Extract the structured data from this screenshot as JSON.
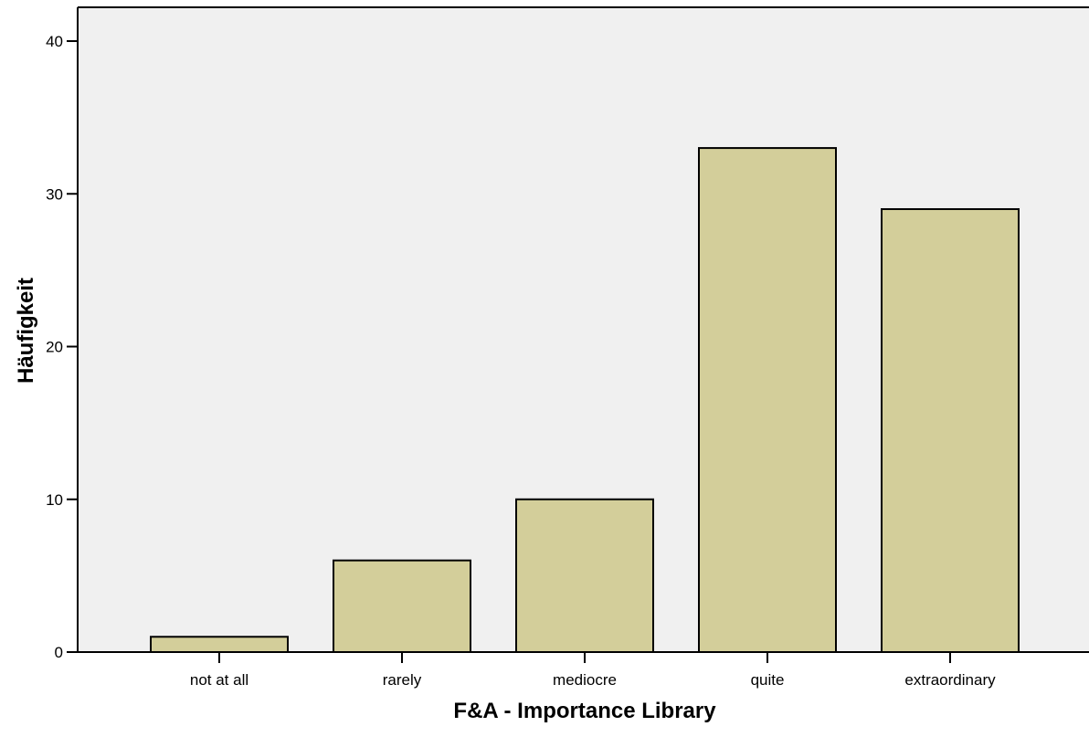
{
  "chart_data": {
    "type": "bar",
    "title": "",
    "xlabel": "F&A - Importance Library",
    "ylabel": "Häufigkeit",
    "categories": [
      "not at all",
      "rarely",
      "mediocre",
      "quite",
      "extraordinary"
    ],
    "values": [
      1,
      6,
      10,
      33,
      29
    ],
    "ylim": [
      0,
      40
    ],
    "yticks": [
      0,
      10,
      20,
      30,
      40
    ],
    "grid": false,
    "legend": "none"
  },
  "colors": {
    "plot_background": "#f0f0f0",
    "bar_fill": "#d3ce9a",
    "bar_stroke": "#000000",
    "axis": "#000000"
  }
}
